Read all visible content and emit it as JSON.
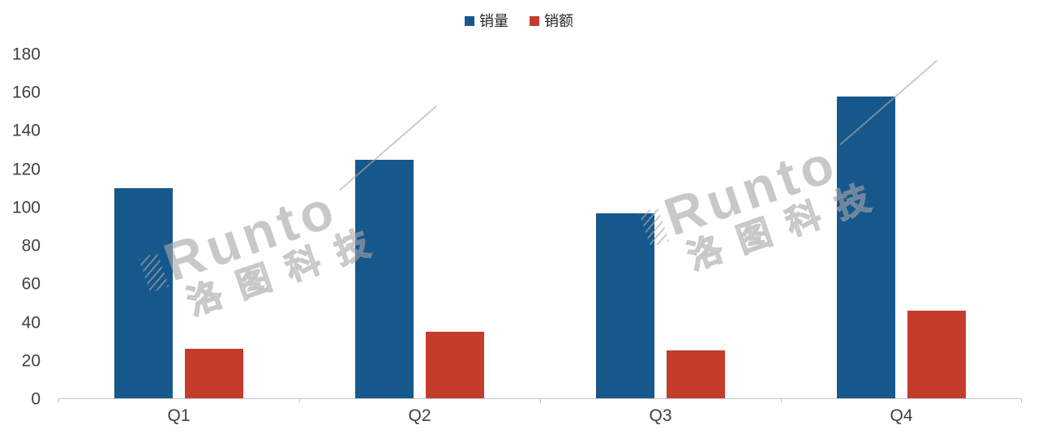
{
  "chart_data": {
    "type": "bar",
    "categories": [
      "Q1",
      "Q2",
      "Q3",
      "Q4"
    ],
    "series": [
      {
        "name": "销量",
        "color": "#17588C",
        "values": [
          110,
          125,
          97,
          158
        ]
      },
      {
        "name": "销额",
        "color": "#C53C2B",
        "values": [
          26,
          35,
          25,
          46
        ]
      }
    ],
    "title": "",
    "xlabel": "",
    "ylabel": "",
    "ylim": [
      0,
      180
    ],
    "yticks": [
      0,
      20,
      40,
      60,
      80,
      100,
      120,
      140,
      160,
      180
    ],
    "grid": false,
    "legend_position": "top-center"
  },
  "legend": {
    "items": [
      {
        "label": "销量",
        "color": "#17588C"
      },
      {
        "label": "销额",
        "color": "#C53C2B"
      }
    ]
  },
  "watermark": {
    "brand": "Runto",
    "cn": "洛图科技",
    "color": "#a8a8a8"
  },
  "axis": {
    "line_color": "#c6c6c6",
    "label_color": "#404040"
  }
}
